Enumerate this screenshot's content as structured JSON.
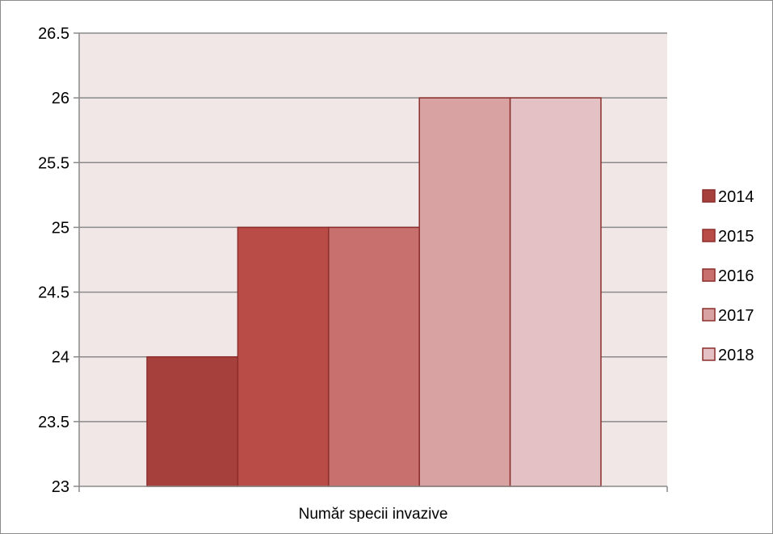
{
  "chart_data": {
    "type": "bar",
    "categories": [
      "Număr specii invazive"
    ],
    "series": [
      {
        "name": "2014",
        "values": [
          24
        ],
        "color": "#a5403d"
      },
      {
        "name": "2015",
        "values": [
          25
        ],
        "color": "#ba4c48"
      },
      {
        "name": "2016",
        "values": [
          25
        ],
        "color": "#c7706e"
      },
      {
        "name": "2017",
        "values": [
          26
        ],
        "color": "#d8a1a2"
      },
      {
        "name": "2018",
        "values": [
          26
        ],
        "color": "#e4c1c5"
      }
    ],
    "ylim": [
      23,
      26.5
    ],
    "yticks": [
      "23",
      "23.5",
      "24",
      "24.5",
      "25",
      "25.5",
      "26",
      "26.5"
    ],
    "grid": true,
    "legend_position": "right",
    "plot_background": "#f2e7e7",
    "bar_border_color": "#8b2e2c",
    "title": "",
    "xlabel": "",
    "ylabel": ""
  }
}
